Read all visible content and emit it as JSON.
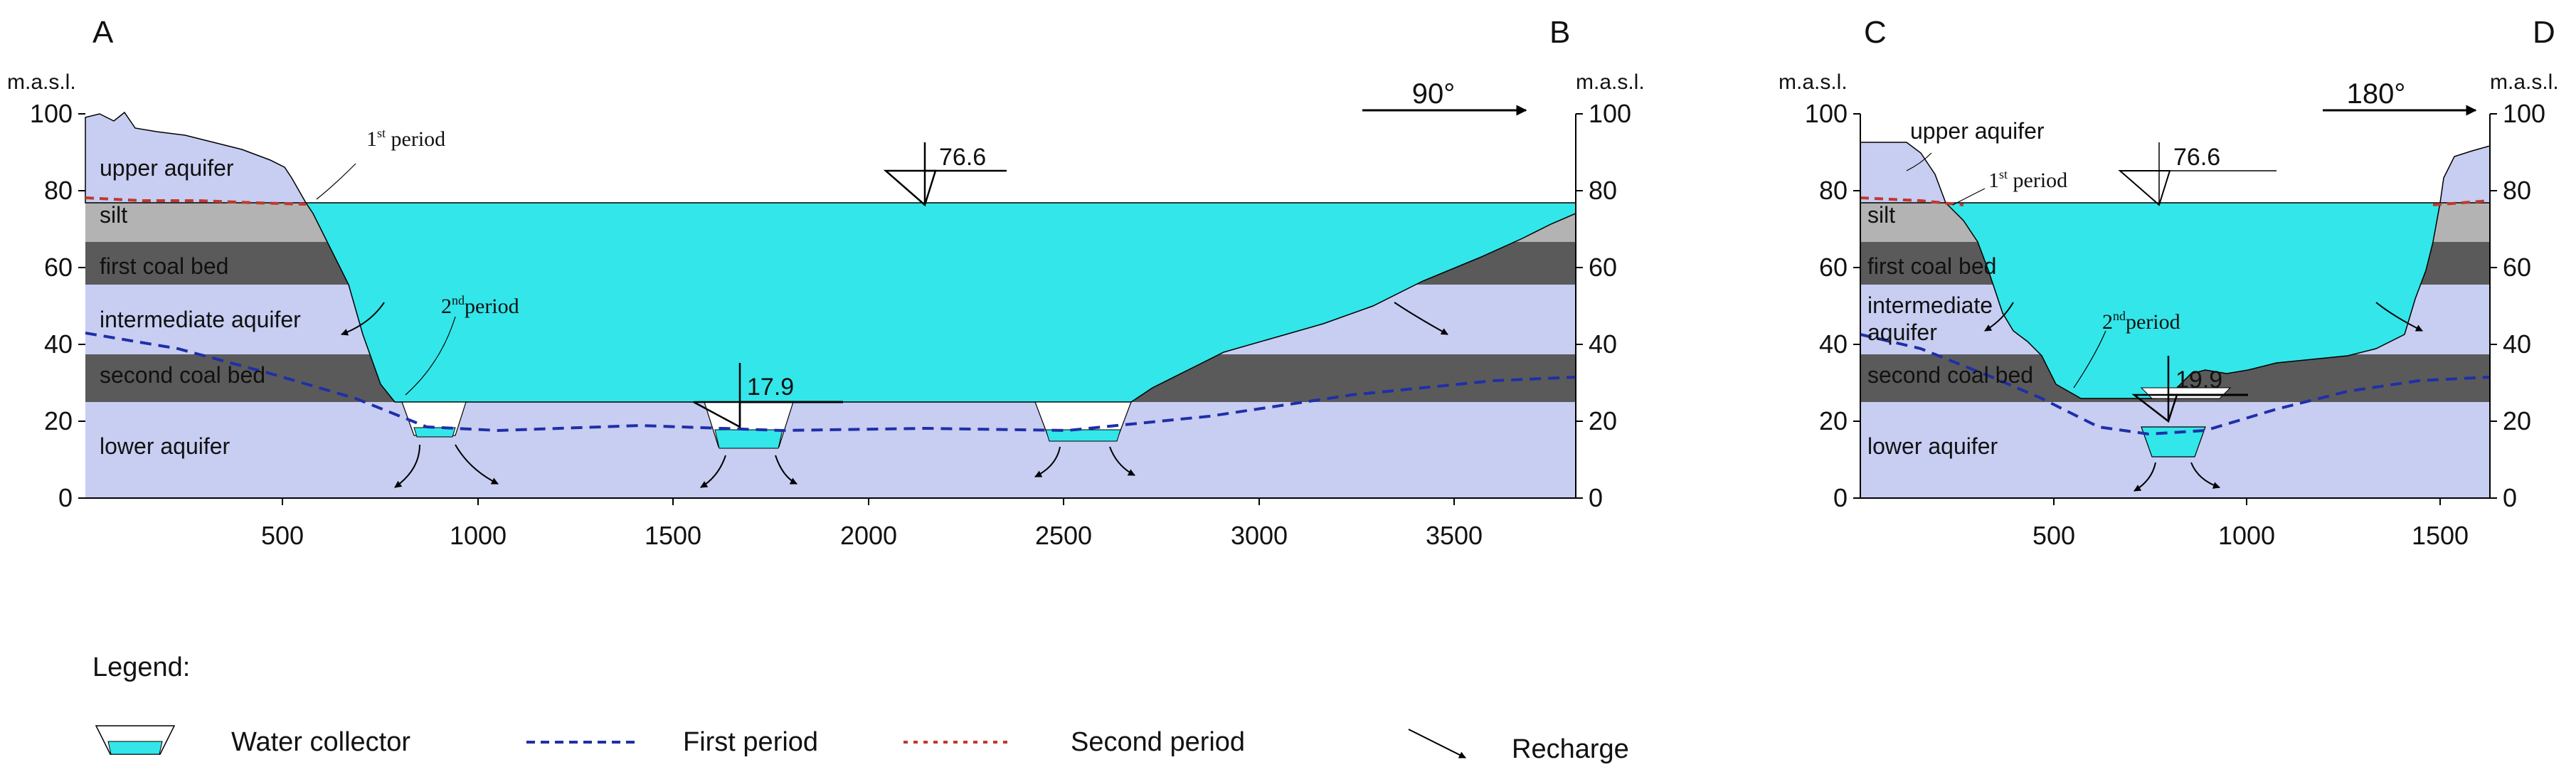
{
  "panel_left": {
    "label_start": "A",
    "label_end": "B",
    "unit_left": "m.a.s.l.",
    "unit_right": "m.a.s.l.",
    "direction": "90°",
    "y_ticks": [
      "100",
      "80",
      "60",
      "40",
      "20",
      "0"
    ],
    "x_ticks": [
      "500",
      "1000",
      "1500",
      "2000",
      "2500",
      "3000",
      "3500"
    ],
    "layers": {
      "upper_aquifer": "upper aquifer",
      "silt": "silt",
      "first_coal_bed": "first coal bed",
      "intermediate_aquifer": "intermediate aquifer",
      "second_coal_bed": "second coal bed",
      "lower_aquifer": "lower aquifer"
    },
    "annotations": {
      "period_1_num": "1",
      "period_1_sup": "st",
      "period_1_text": " period",
      "period_2_num": "2",
      "period_2_sup": "nd",
      "period_2_text": "period"
    },
    "water_levels": {
      "lake": "76.6",
      "collector": "17.9"
    }
  },
  "panel_right": {
    "label_start": "C",
    "label_end": "D",
    "unit_left": "m.a.s.l.",
    "unit_right": "m.a.s.l.",
    "direction": "180°",
    "y_ticks": [
      "100",
      "80",
      "60",
      "40",
      "20",
      "0"
    ],
    "x_ticks": [
      "500",
      "1000",
      "1500"
    ],
    "layers": {
      "upper_aquifer": "upper aquifer",
      "silt": "silt",
      "first_coal_bed": "first coal bed",
      "intermediate_aquifer_1": "intermediate",
      "intermediate_aquifer_2": "aquifer",
      "second_coal_bed": "second coal bed",
      "lower_aquifer": "lower aquifer"
    },
    "annotations": {
      "period_1_num": "1",
      "period_1_sup": "st",
      "period_1_text": " period",
      "period_2_num": "2",
      "period_2_sup": "nd",
      "period_2_text": "period"
    },
    "water_levels": {
      "lake": "76.6",
      "collector": "19.9"
    }
  },
  "legend": {
    "title": "Legend:",
    "water_collector": "Water collector",
    "first_period": "First period",
    "second_period": "Second period",
    "recharge": "Recharge"
  },
  "colors": {
    "upper_aquifer": "#c8cdf2",
    "silt": "#b3b3b3",
    "coal": "#5a5a5a",
    "water": "#33e6ea",
    "first_period_line": "#1f2fa8",
    "second_period_line": "#c0392b"
  }
}
